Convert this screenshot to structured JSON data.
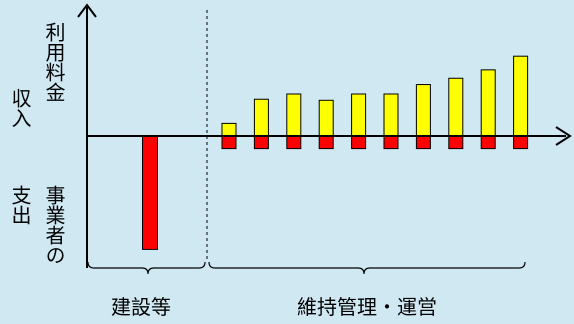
{
  "labels": {
    "income_line1": "利用料金",
    "income_line2": "収入",
    "expense_line1": "事業者の",
    "expense_line2": "支出",
    "phase_construction": "建設等",
    "phase_operation": "維持管理・運営"
  },
  "colors": {
    "background": "#cfe8f2",
    "income_bar": "#ffff00",
    "expense_bar": "#ff0000",
    "stroke": "#000000"
  },
  "chart_data": {
    "type": "bar",
    "phases": [
      "建設等",
      "維持管理・運営"
    ],
    "construction_expense": -10.8,
    "operation": {
      "income": [
        1.2,
        3.5,
        4.0,
        3.4,
        4.0,
        4.0,
        4.9,
        5.5,
        6.3,
        7.6
      ],
      "expense": [
        -1.2,
        -1.2,
        -1.2,
        -1.2,
        -1.2,
        -1.2,
        -1.2,
        -1.2,
        -1.2,
        -1.2
      ]
    },
    "units": "relative"
  }
}
